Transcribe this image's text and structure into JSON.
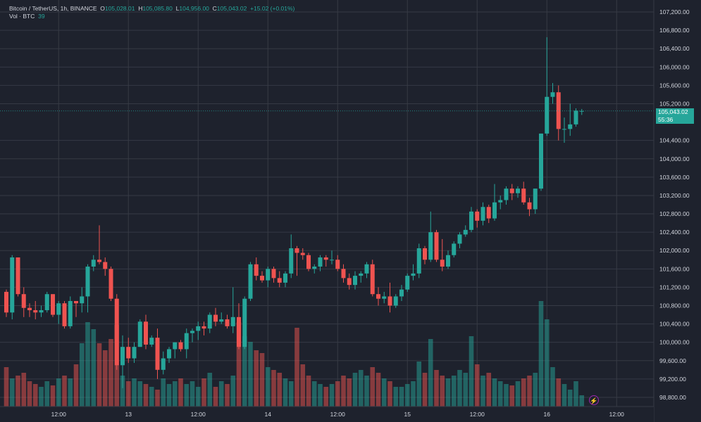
{
  "legend": {
    "symbol": "Bitcoin / TetherUS, 1h, BINANCE",
    "o_key": "O",
    "o_val": "105,028.01",
    "h_key": "H",
    "h_val": "105,085.80",
    "l_key": "L",
    "l_val": "104,956.00",
    "c_key": "C",
    "c_val": "105,043.02",
    "change": "+15.02 (+0.01%)",
    "vol_label": "Vol · BTC",
    "vol_value": "39"
  },
  "price_badge": {
    "price": "105,043.02",
    "countdown": "55:36"
  },
  "colors": {
    "up": "#26a69a",
    "down": "#ef5350",
    "background": "#1e222d",
    "grid": "#363a45",
    "axis_text": "#d1d4dc"
  },
  "icons": {
    "indicator_button": "lightning-icon"
  },
  "chart_data": {
    "type": "candlestick",
    "x_tick_labels": [
      "12:00",
      "13",
      "12:00",
      "14",
      "12:00",
      "15",
      "12:00",
      "16",
      "12:00"
    ],
    "y_tick_labels": [
      "107,200.00",
      "106,800.00",
      "106,400.00",
      "106,000.00",
      "105,600.00",
      "105,200.00",
      "104,400.00",
      "104,000.00",
      "103,600.00",
      "103,200.00",
      "102,800.00",
      "102,400.00",
      "102,000.00",
      "101,600.00",
      "101,200.00",
      "100,800.00",
      "100,400.00",
      "100,000.00",
      "99,600.00",
      "99,200.00",
      "98,800.00"
    ],
    "y_tick_values": [
      107200,
      106800,
      106400,
      106000,
      105600,
      105200,
      104400,
      104000,
      103600,
      103200,
      102800,
      102400,
      102000,
      101600,
      101200,
      100800,
      100400,
      100000,
      99600,
      99200,
      98800
    ],
    "ylim": [
      98600,
      107400
    ],
    "last_price": 105043.02,
    "grid": true,
    "candles": [
      [
        101100,
        101150,
        100550,
        100650,
        28
      ],
      [
        100650,
        101900,
        100500,
        101850,
        20
      ],
      [
        101850,
        101850,
        101000,
        101050,
        22
      ],
      [
        101050,
        101200,
        100550,
        100750,
        24
      ],
      [
        100750,
        100850,
        100550,
        100700,
        18
      ],
      [
        100700,
        100900,
        100500,
        100650,
        16
      ],
      [
        100650,
        100800,
        100550,
        100700,
        14
      ],
      [
        100700,
        101100,
        100650,
        101050,
        18
      ],
      [
        101050,
        101050,
        100550,
        100600,
        15
      ],
      [
        100600,
        100900,
        100400,
        100850,
        20
      ],
      [
        100850,
        100900,
        100300,
        100350,
        22
      ],
      [
        100350,
        101000,
        100300,
        100900,
        20
      ],
      [
        100900,
        100900,
        100550,
        100850,
        30
      ],
      [
        100850,
        101200,
        100650,
        101000,
        45
      ],
      [
        101000,
        101700,
        100650,
        101650,
        60
      ],
      [
        101650,
        101900,
        101550,
        101800,
        55
      ],
      [
        101800,
        102550,
        101700,
        101750,
        45
      ],
      [
        101750,
        101850,
        101450,
        101600,
        40
      ],
      [
        101600,
        101650,
        100900,
        100950,
        48
      ],
      [
        100950,
        101050,
        99400,
        99500,
        58
      ],
      [
        99500,
        100150,
        99000,
        99900,
        22
      ],
      [
        99900,
        100100,
        99550,
        99650,
        18
      ],
      [
        99650,
        100000,
        99550,
        99900,
        20
      ],
      [
        99900,
        100500,
        99900,
        100450,
        18
      ],
      [
        100450,
        100600,
        99850,
        99950,
        16
      ],
      [
        99950,
        100150,
        99900,
        100100,
        14
      ],
      [
        100100,
        100300,
        99200,
        99400,
        12
      ],
      [
        99400,
        99800,
        99300,
        99650,
        20
      ],
      [
        99650,
        99900,
        99550,
        99850,
        16
      ],
      [
        99850,
        100000,
        99650,
        100000,
        18
      ],
      [
        100000,
        100050,
        99800,
        99850,
        20
      ],
      [
        99850,
        100300,
        99650,
        100200,
        16
      ],
      [
        100200,
        100300,
        100000,
        100250,
        18
      ],
      [
        100250,
        100450,
        100050,
        100350,
        14
      ],
      [
        100350,
        100450,
        100150,
        100300,
        20
      ],
      [
        100300,
        100650,
        100200,
        100600,
        24
      ],
      [
        100600,
        100750,
        100350,
        100450,
        14
      ],
      [
        100450,
        100650,
        100400,
        100500,
        18
      ],
      [
        100500,
        100600,
        100300,
        100350,
        16
      ],
      [
        100350,
        101200,
        100200,
        100550,
        22
      ],
      [
        100550,
        100850,
        99850,
        99900,
        60
      ],
      [
        99900,
        101000,
        99850,
        100950,
        50
      ],
      [
        100950,
        101750,
        100900,
        101700,
        46
      ],
      [
        101700,
        101850,
        101350,
        101450,
        40
      ],
      [
        101450,
        101550,
        101300,
        101350,
        38
      ],
      [
        101350,
        101650,
        101200,
        101600,
        28
      ],
      [
        101600,
        101650,
        101300,
        101400,
        26
      ],
      [
        101400,
        101550,
        101200,
        101300,
        24
      ],
      [
        101300,
        101550,
        101200,
        101500,
        20
      ],
      [
        101500,
        102350,
        101400,
        102050,
        18
      ],
      [
        102050,
        102100,
        101450,
        101950,
        56
      ],
      [
        101950,
        102050,
        101800,
        101900,
        30
      ],
      [
        101900,
        101950,
        101550,
        101600,
        22
      ],
      [
        101600,
        101700,
        101500,
        101650,
        18
      ],
      [
        101650,
        101900,
        101550,
        101850,
        16
      ],
      [
        101850,
        101900,
        101650,
        101800,
        14
      ],
      [
        101800,
        102000,
        101700,
        101800,
        16
      ],
      [
        101800,
        101900,
        101550,
        101600,
        18
      ],
      [
        101600,
        101700,
        101300,
        101400,
        22
      ],
      [
        101400,
        101500,
        101150,
        101250,
        20
      ],
      [
        101250,
        101550,
        101150,
        101450,
        24
      ],
      [
        101450,
        101550,
        101300,
        101500,
        26
      ],
      [
        101500,
        101750,
        101400,
        101700,
        22
      ],
      [
        101700,
        101800,
        101000,
        101050,
        28
      ],
      [
        101050,
        101200,
        100800,
        100950,
        24
      ],
      [
        100950,
        101100,
        100850,
        101000,
        20
      ],
      [
        101000,
        101300,
        100650,
        100800,
        18
      ],
      [
        100800,
        101050,
        100750,
        101000,
        14
      ],
      [
        101000,
        101250,
        100900,
        101150,
        14
      ],
      [
        101150,
        101500,
        101100,
        101450,
        16
      ],
      [
        101450,
        101700,
        101350,
        101500,
        18
      ],
      [
        101500,
        102150,
        101400,
        102050,
        32
      ],
      [
        102050,
        102100,
        101700,
        101800,
        24
      ],
      [
        101800,
        102850,
        101750,
        102400,
        48
      ],
      [
        102400,
        102450,
        101750,
        101800,
        26
      ],
      [
        101800,
        102250,
        101550,
        101650,
        22
      ],
      [
        101650,
        102000,
        101600,
        101900,
        20
      ],
      [
        101900,
        102200,
        101850,
        102150,
        22
      ],
      [
        102150,
        102400,
        102050,
        102350,
        26
      ],
      [
        102350,
        102550,
        102300,
        102450,
        24
      ],
      [
        102450,
        102950,
        102400,
        102850,
        50
      ],
      [
        102850,
        102900,
        102500,
        102650,
        30
      ],
      [
        102650,
        103050,
        102550,
        102950,
        22
      ],
      [
        102950,
        103000,
        102600,
        102700,
        24
      ],
      [
        102700,
        103450,
        102650,
        103050,
        20
      ],
      [
        103050,
        103200,
        102900,
        103100,
        18
      ],
      [
        103100,
        103400,
        103000,
        103350,
        16
      ],
      [
        103350,
        103450,
        103100,
        103250,
        15
      ],
      [
        103250,
        103400,
        103150,
        103350,
        18
      ],
      [
        103350,
        103500,
        103000,
        103050,
        20
      ],
      [
        103050,
        103150,
        102750,
        102900,
        22
      ],
      [
        102900,
        103350,
        102800,
        103350,
        24
      ],
      [
        103350,
        104550,
        103300,
        104550,
        75
      ],
      [
        104550,
        106650,
        104500,
        105350,
        62
      ],
      [
        105350,
        105650,
        105200,
        105450,
        28
      ],
      [
        105450,
        105600,
        104400,
        104650,
        20
      ],
      [
        104650,
        104900,
        104350,
        104650,
        16
      ],
      [
        104650,
        105200,
        104500,
        104750,
        12
      ],
      [
        104750,
        105100,
        104700,
        105050,
        18
      ],
      [
        105028.01,
        105085.8,
        104956.0,
        105043.02,
        8
      ]
    ],
    "volume_max": 75
  }
}
